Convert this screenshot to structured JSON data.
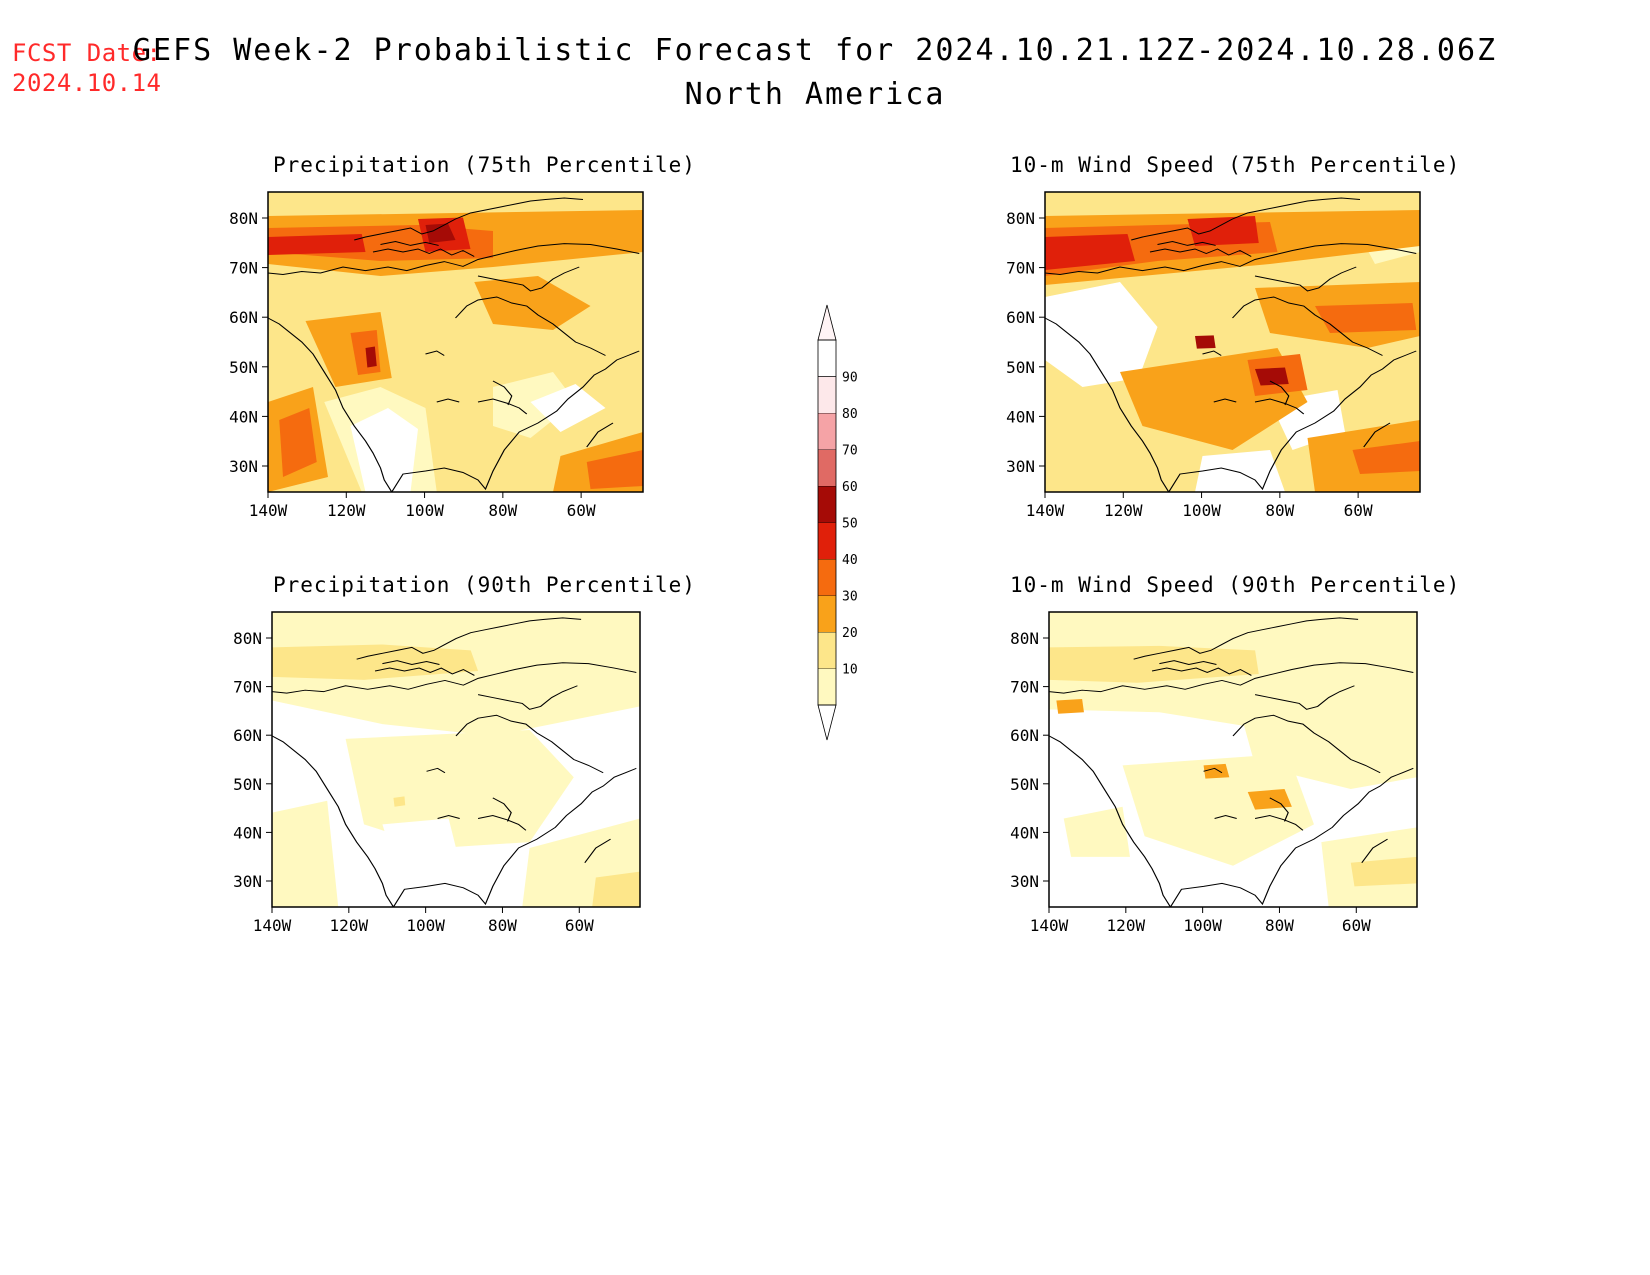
{
  "header": {
    "fcst_label": "FCST Date:",
    "fcst_date": "2024.10.14",
    "title": "GEFS Week-2 Probabilistic Forecast for 2024.10.21.12Z-2024.10.28.06Z",
    "subtitle": "North America"
  },
  "panels": [
    {
      "title": "Precipitation (75th Percentile)"
    },
    {
      "title": "10-m Wind Speed (75th Percentile)"
    },
    {
      "title": "Precipitation (90th Percentile)"
    },
    {
      "title": "10-m Wind Speed (90th Percentile)"
    }
  ],
  "axes": {
    "lat_labels": [
      "80N",
      "70N",
      "60N",
      "50N",
      "40N",
      "30N"
    ],
    "lon_labels": [
      "140W",
      "120W",
      "100W",
      "80W",
      "60W"
    ]
  },
  "colorbar": {
    "levels": [
      "10",
      "20",
      "30",
      "40",
      "50",
      "60",
      "70",
      "80",
      "90"
    ],
    "colors": [
      "#fff9c0",
      "#fde68a",
      "#f9a21a",
      "#f56b0f",
      "#e0200a",
      "#a50b06",
      "#e06a64",
      "#f5a3a6",
      "#fde8ea"
    ]
  }
}
